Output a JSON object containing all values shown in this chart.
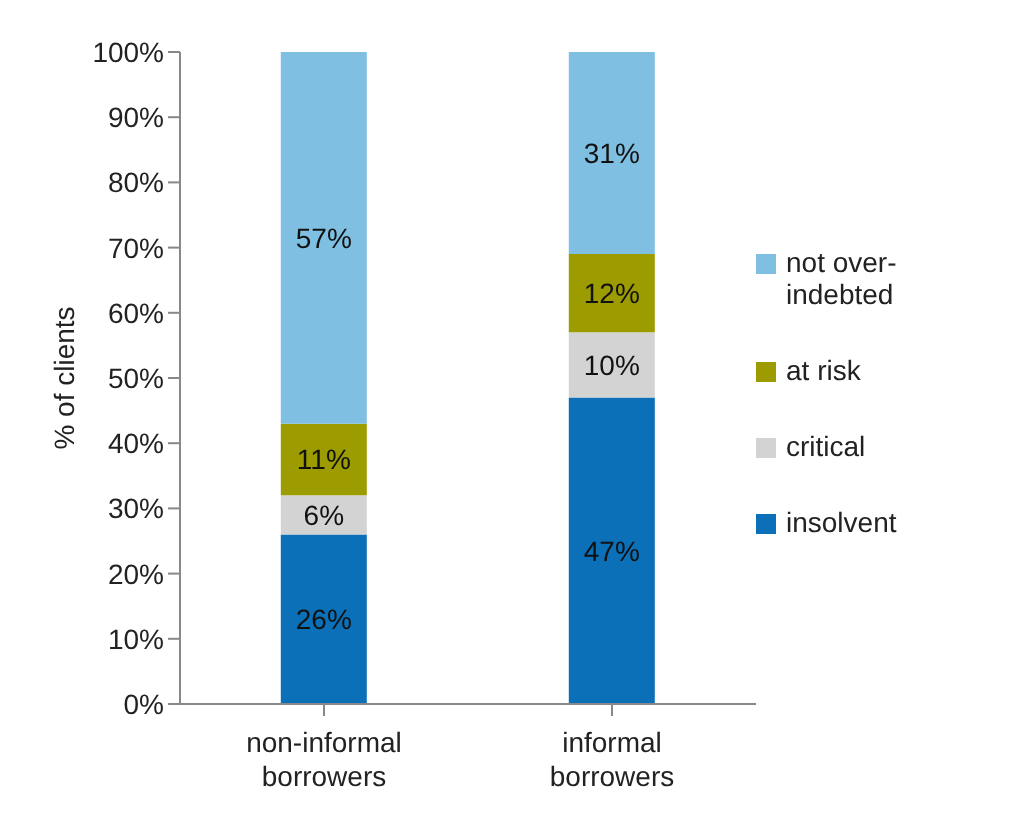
{
  "chart_data": {
    "type": "bar",
    "stacked": true,
    "ylabel": "% of clients",
    "categories": [
      "non-informal borrowers",
      "informal borrowers"
    ],
    "series": [
      {
        "name": "insolvent",
        "color": "#0b70b8",
        "values": [
          26,
          47
        ],
        "value_labels": [
          "26%",
          "47%"
        ]
      },
      {
        "name": "critical",
        "color": "#d3d3d3",
        "values": [
          6,
          10
        ],
        "value_labels": [
          "6%",
          "10%"
        ]
      },
      {
        "name": "at risk",
        "color": "#9c9c00",
        "values": [
          11,
          12
        ],
        "value_labels": [
          "11%",
          "12%"
        ]
      },
      {
        "name": "not over-indebted",
        "color": "#7fbfe2",
        "values": [
          57,
          31
        ],
        "value_labels": [
          "57%",
          "31%"
        ]
      }
    ],
    "ylim": [
      0,
      100
    ],
    "yticks": [
      {
        "value": 0,
        "label": "0%"
      },
      {
        "value": 10,
        "label": "10%"
      },
      {
        "value": 20,
        "label": "20%"
      },
      {
        "value": 30,
        "label": "30%"
      },
      {
        "value": 40,
        "label": "40%"
      },
      {
        "value": 50,
        "label": "50%"
      },
      {
        "value": 60,
        "label": "60%"
      },
      {
        "value": 70,
        "label": "70%"
      },
      {
        "value": 80,
        "label": "80%"
      },
      {
        "value": 90,
        "label": "90%"
      },
      {
        "value": 100,
        "label": "100%"
      }
    ],
    "grid": false,
    "legend": "right"
  }
}
